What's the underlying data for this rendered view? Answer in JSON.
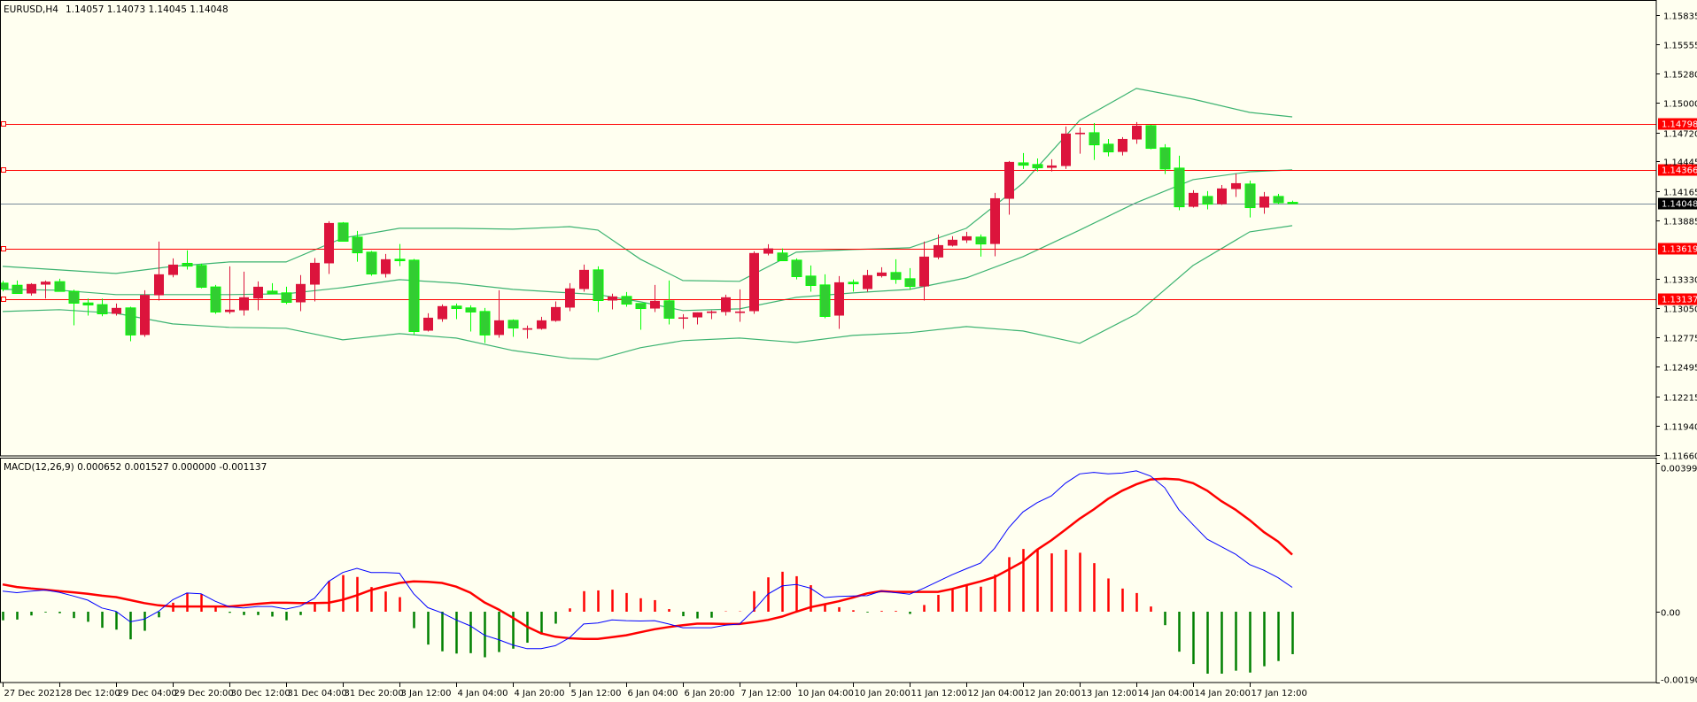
{
  "header": {
    "symbol": "EURUSD,H4",
    "ohlc": "1.14057 1.14073 1.14045 1.14048"
  },
  "macd_header": "MACD(12,26,9) 0.000652 0.001527 0.000000 -0.001137",
  "price_axis": [
    "1.15835",
    "1.15555",
    "1.15280",
    "1.15000",
    "1.14720",
    "1.14445",
    "1.14165",
    "1.13885",
    "1.13330",
    "1.13050",
    "1.12775",
    "1.12495",
    "1.12215",
    "1.11940",
    "1.11660"
  ],
  "macd_axis": [
    "0.003991",
    "0.00",
    "-0.001907"
  ],
  "time_axis": [
    "27 Dec 2021",
    "28 Dec 12:00",
    "29 Dec 04:00",
    "29 Dec 20:00",
    "30 Dec 12:00",
    "31 Dec 04:00",
    "31 Dec 20:00",
    "3 Jan 12:00",
    "4 Jan 04:00",
    "4 Jan 20:00",
    "5 Jan 12:00",
    "6 Jan 04:00",
    "6 Jan 20:00",
    "7 Jan 12:00",
    "10 Jan 04:00",
    "10 Jan 20:00",
    "11 Jan 12:00",
    "12 Jan 04:00",
    "12 Jan 20:00",
    "13 Jan 12:00",
    "14 Jan 04:00",
    "14 Jan 20:00",
    "17 Jan 12:00"
  ],
  "levels": [
    "1.14798",
    "1.14366",
    "1.13619",
    "1.13137"
  ],
  "current_price": "1.14048",
  "colors": {
    "background": "#fffff0",
    "bull": "#dc143c",
    "bear": "#32cd32",
    "bear_border": "#00ff00",
    "bands": "#3cb371",
    "level": "#ff0000",
    "price_line": "#778899",
    "macd_main": "#0000ff",
    "macd_signal": "#ff0000",
    "hist_up": "#ff0000",
    "hist_down": "#008000"
  },
  "chart_data": [
    {
      "type": "candlestick",
      "title": "EURUSD,H4",
      "ylim": [
        1.1166,
        1.15835
      ],
      "ohlc": [
        [
          1.1329,
          1.13312,
          1.13212,
          1.13234
        ],
        [
          1.1327,
          1.13315,
          1.13192,
          1.13192
        ],
        [
          1.13192,
          1.1329,
          1.13172,
          1.13282
        ],
        [
          1.13276,
          1.13315,
          1.13144,
          1.13304
        ],
        [
          1.13304,
          1.13332,
          1.13212,
          1.13212
        ],
        [
          1.13212,
          1.13228,
          1.1289,
          1.131
        ],
        [
          1.13102,
          1.13144,
          1.12982,
          1.13083
        ],
        [
          1.13086,
          1.13144,
          1.12976,
          1.12999
        ],
        [
          1.12999,
          1.13097,
          1.12982,
          1.13055
        ],
        [
          1.13055,
          1.13066,
          1.12738,
          1.12798
        ],
        [
          1.12798,
          1.13223,
          1.1278,
          1.13178
        ],
        [
          1.13175,
          1.13685,
          1.13125,
          1.13374
        ],
        [
          1.13368,
          1.13525,
          1.13346,
          1.13466
        ],
        [
          1.13478,
          1.13601,
          1.13419,
          1.13452
        ],
        [
          1.13458,
          1.13475,
          1.13242,
          1.13251
        ],
        [
          1.13254,
          1.13273,
          1.12999,
          1.13016
        ],
        [
          1.13016,
          1.1345,
          1.12999,
          1.13038
        ],
        [
          1.13032,
          1.13399,
          1.12982,
          1.13156
        ],
        [
          1.13144,
          1.13307,
          1.13032,
          1.13256
        ],
        [
          1.13214,
          1.1329,
          1.1319,
          1.1319
        ],
        [
          1.13198,
          1.13256,
          1.13091,
          1.13108
        ],
        [
          1.13108,
          1.13366,
          1.13024,
          1.13282
        ],
        [
          1.13276,
          1.13528,
          1.13116,
          1.13483
        ],
        [
          1.13478,
          1.13878,
          1.13377,
          1.13861
        ],
        [
          1.13861,
          1.1387,
          1.13688,
          1.13688
        ],
        [
          1.13727,
          1.13786,
          1.13494,
          1.13578
        ],
        [
          1.13584,
          1.13595,
          1.1336,
          1.13377
        ],
        [
          1.13377,
          1.13567,
          1.13343,
          1.13517
        ],
        [
          1.13517,
          1.13662,
          1.13452,
          1.13503
        ],
        [
          1.13508,
          1.1352,
          1.12798,
          1.12831
        ],
        [
          1.12839,
          1.13004,
          1.12831,
          1.12962
        ],
        [
          1.12948,
          1.13088,
          1.12923,
          1.13072
        ],
        [
          1.13072,
          1.13097,
          1.12948,
          1.13049
        ],
        [
          1.13055,
          1.1308,
          1.12831,
          1.13016
        ],
        [
          1.13021,
          1.13055,
          1.12722,
          1.12798
        ],
        [
          1.12798,
          1.13223,
          1.12772,
          1.12937
        ],
        [
          1.12937,
          1.12946,
          1.1278,
          1.12864
        ],
        [
          1.12848,
          1.12887,
          1.12764,
          1.12862
        ],
        [
          1.12856,
          1.12971,
          1.12848,
          1.12937
        ],
        [
          1.12932,
          1.13116,
          1.12923,
          1.13063
        ],
        [
          1.13058,
          1.1329,
          1.13024,
          1.1324
        ],
        [
          1.13234,
          1.13466,
          1.13209,
          1.13416
        ],
        [
          1.13416,
          1.1345,
          1.13016,
          1.13125
        ],
        [
          1.13125,
          1.1319,
          1.13041,
          1.13164
        ],
        [
          1.13164,
          1.13206,
          1.13066,
          1.13091
        ],
        [
          1.13097,
          1.13097,
          1.12848,
          1.13049
        ],
        [
          1.13049,
          1.13273,
          1.13016,
          1.13122
        ],
        [
          1.13122,
          1.13315,
          1.12898,
          1.12957
        ],
        [
          1.12957,
          1.12996,
          1.12856,
          1.12965
        ],
        [
          1.12965,
          1.13013,
          1.12898,
          1.13013
        ],
        [
          1.13007,
          1.1303,
          1.12948,
          1.13021
        ],
        [
          1.13016,
          1.13181,
          1.12982,
          1.13156
        ],
        [
          1.13007,
          1.13231,
          1.12923,
          1.13021
        ],
        [
          1.13024,
          1.13592,
          1.12999,
          1.13576
        ],
        [
          1.1357,
          1.1366,
          1.13553,
          1.1362
        ],
        [
          1.13576,
          1.1362,
          1.13503,
          1.13503
        ],
        [
          1.13508,
          1.13525,
          1.13326,
          1.13352
        ],
        [
          1.13357,
          1.13458,
          1.13209,
          1.13268
        ],
        [
          1.13273,
          1.13374,
          1.12957,
          1.12974
        ],
        [
          1.12982,
          1.13357,
          1.12856,
          1.13298
        ],
        [
          1.13298,
          1.13324,
          1.13209,
          1.13284
        ],
        [
          1.13234,
          1.13416,
          1.13209,
          1.13366
        ],
        [
          1.13357,
          1.13441,
          1.13343,
          1.13391
        ],
        [
          1.13391,
          1.13517,
          1.13284,
          1.13326
        ],
        [
          1.13332,
          1.13433,
          1.13226,
          1.13259
        ],
        [
          1.13259,
          1.13685,
          1.13125,
          1.13542
        ],
        [
          1.13534,
          1.13752,
          1.13517,
          1.13651
        ],
        [
          1.13646,
          1.13735,
          1.13637,
          1.13702
        ],
        [
          1.13696,
          1.13777,
          1.13671,
          1.13735
        ],
        [
          1.13727,
          1.13752,
          1.13542,
          1.13662
        ],
        [
          1.13662,
          1.14147,
          1.13545,
          1.14096
        ],
        [
          1.14091,
          1.14449,
          1.1394,
          1.14441
        ],
        [
          1.14432,
          1.14525,
          1.14374,
          1.1441
        ],
        [
          1.14416,
          1.14474,
          1.14351,
          1.14385
        ],
        [
          1.14385,
          1.14466,
          1.14351,
          1.14407
        ],
        [
          1.14402,
          1.14777,
          1.14374,
          1.1471
        ],
        [
          1.14704,
          1.14768,
          1.14519,
          1.14718
        ],
        [
          1.14718,
          1.1481,
          1.1446,
          1.14603
        ],
        [
          1.14609,
          1.14659,
          1.14494,
          1.14536
        ],
        [
          1.14536,
          1.14676,
          1.14502,
          1.14659
        ],
        [
          1.14654,
          1.14819,
          1.14612,
          1.14785
        ],
        [
          1.14785,
          1.14794,
          1.14561,
          1.1457
        ],
        [
          1.14575,
          1.14609,
          1.14326,
          1.14374
        ],
        [
          1.14382,
          1.145,
          1.13982,
          1.14015
        ],
        [
          1.14015,
          1.14172,
          1.14007,
          1.14147
        ],
        [
          1.14113,
          1.14164,
          1.1399,
          1.1404
        ],
        [
          1.1404,
          1.14222,
          1.14032,
          1.14189
        ],
        [
          1.14183,
          1.14332,
          1.14108,
          1.14239
        ],
        [
          1.14231,
          1.14264,
          1.13914,
          1.14007
        ],
        [
          1.14007,
          1.14155,
          1.13948,
          1.14113
        ],
        [
          1.14113,
          1.14138,
          1.1404,
          1.14054
        ],
        [
          1.14057,
          1.14073,
          1.14045,
          1.14048
        ]
      ],
      "bollinger_bands": {
        "bar_index": [
          0,
          4,
          8,
          12,
          16,
          20,
          24,
          28,
          32,
          36,
          40,
          42,
          45,
          48,
          52,
          56,
          60,
          64,
          68,
          72,
          76,
          80,
          84,
          88,
          91
        ],
        "upper": [
          1.13449,
          1.13416,
          1.13382,
          1.13449,
          1.13491,
          1.13491,
          1.13718,
          1.13811,
          1.13811,
          1.13802,
          1.13827,
          1.13794,
          1.13517,
          1.13315,
          1.13307,
          1.13584,
          1.13609,
          1.13626,
          1.13811,
          1.14239,
          1.14835,
          1.15138,
          1.15037,
          1.14911,
          1.14869
        ],
        "middle": [
          1.13231,
          1.13223,
          1.13181,
          1.13181,
          1.13181,
          1.13189,
          1.13248,
          1.13323,
          1.1329,
          1.13231,
          1.13197,
          1.13181,
          1.13113,
          1.1303,
          1.13046,
          1.13155,
          1.13197,
          1.13231,
          1.1334,
          1.13542,
          1.13794,
          1.14054,
          1.14273,
          1.14348,
          1.14365
        ],
        "lower": [
          1.13021,
          1.13038,
          1.13004,
          1.12903,
          1.1287,
          1.12862,
          1.12752,
          1.12811,
          1.12769,
          1.12651,
          1.12576,
          1.12567,
          1.12677,
          1.12744,
          1.12769,
          1.12727,
          1.12794,
          1.1282,
          1.12878,
          1.12836,
          1.12719,
          1.12996,
          1.13458,
          1.13777,
          1.13836
        ]
      }
    },
    {
      "type": "line",
      "title": "MACD(12,26,9)",
      "ylim": [
        -0.001907,
        0.003991
      ],
      "series": [
        {
          "name": "MACD",
          "values": [
            0.00055,
            0.00051,
            0.00055,
            0.00058,
            0.00052,
            0.00042,
            0.00031,
            0.0001,
            1e-05,
            -0.00027,
            -0.0002,
            1e-05,
            0.00032,
            0.0005,
            0.00048,
            0.00028,
            0.00013,
            0.0001,
            0.00014,
            0.00014,
            7e-05,
            0.00015,
            0.00036,
            0.00081,
            0.00105,
            0.00116,
            0.00105,
            0.00105,
            0.00103,
            0.00048,
            0.00011,
            -3e-05,
            -0.00022,
            -0.00038,
            -0.00063,
            -0.00075,
            -0.00089,
            -0.00099,
            -0.00099,
            -0.00091,
            -0.0007,
            -0.00033,
            -0.0003,
            -0.00022,
            -0.00024,
            -0.00025,
            -0.00024,
            -0.00033,
            -0.00043,
            -0.00043,
            -0.00043,
            -0.00036,
            -0.00033,
            4e-05,
            0.00047,
            0.00069,
            0.00073,
            0.00063,
            0.00038,
            0.00041,
            0.00042,
            0.00043,
            0.00055,
            0.00051,
            0.00047,
            0.00063,
            0.00081,
            0.00099,
            0.00115,
            0.0013,
            0.0017,
            0.00225,
            0.00267,
            0.00292,
            0.0031,
            0.00344,
            0.00369,
            0.00373,
            0.00369,
            0.00371,
            0.00377,
            0.00363,
            0.00332,
            0.00273,
            0.00233,
            0.00194,
            0.00174,
            0.00154,
            0.00126,
            0.00111,
            0.00091,
            0.000652
          ]
        },
        {
          "name": "Signal",
          "values": [
            0.00073,
            0.00066,
            0.00062,
            0.00059,
            0.00055,
            0.00052,
            0.00048,
            0.00043,
            0.00039,
            0.00031,
            0.00023,
            0.00017,
            0.00014,
            0.00014,
            0.00014,
            0.00014,
            0.00014,
            0.00017,
            0.00021,
            0.00024,
            0.00024,
            0.00023,
            0.00023,
            0.00024,
            0.00032,
            0.00044,
            0.00058,
            0.00068,
            0.00077,
            0.00081,
            0.0008,
            0.00077,
            0.00067,
            0.00051,
            0.00025,
            6e-05,
            -0.00016,
            -0.0004,
            -0.00058,
            -0.00067,
            -0.00071,
            -0.00073,
            -0.00073,
            -0.00068,
            -0.00063,
            -0.00055,
            -0.00047,
            -0.00041,
            -0.00036,
            -0.00032,
            -0.00032,
            -0.00033,
            -0.00033,
            -0.00028,
            -0.00022,
            -0.00013,
            0.0,
            0.00012,
            0.0002,
            0.00028,
            0.00038,
            0.00049,
            0.00055,
            0.00053,
            0.00053,
            0.00053,
            0.00053,
            0.00061,
            0.00071,
            0.00081,
            0.00093,
            0.00113,
            0.00134,
            0.00166,
            0.00191,
            0.0022,
            0.00249,
            0.00274,
            0.00302,
            0.00324,
            0.00341,
            0.00354,
            0.00356,
            0.00354,
            0.00344,
            0.00324,
            0.00296,
            0.00273,
            0.00245,
            0.00213,
            0.00188,
            0.001527
          ]
        },
        {
          "name": "Histogram",
          "values": [
            -0.00023,
            -0.00021,
            -0.0001,
            -2e-05,
            -4e-05,
            -0.00017,
            -0.00027,
            -0.00043,
            -0.00048,
            -0.00074,
            -0.00051,
            -0.00015,
            0.00024,
            0.00051,
            0.00047,
            0.00015,
            -3e-05,
            -9e-05,
            -9e-05,
            -0.00013,
            -0.00023,
            -9e-05,
            0.00022,
            0.00082,
            0.00098,
            0.00093,
            0.00066,
            0.00054,
            0.00039,
            -0.00044,
            -0.00088,
            -0.00106,
            -0.00112,
            -0.00111,
            -0.00122,
            -0.00108,
            -0.00099,
            -0.00083,
            -0.00061,
            -0.00032,
            9e-05,
            0.00055,
            0.00057,
            0.00059,
            0.0005,
            0.00036,
            0.00031,
            7e-05,
            -0.00012,
            -0.00018,
            -0.00016,
            1e-05,
            1e-05,
            0.00055,
            0.00092,
            0.00107,
            0.00095,
            0.00071,
            0.0002,
            0.00012,
            4e-05,
            -2e-05,
            2e-05,
            2e-05,
            -6e-05,
            0.00018,
            0.00045,
            0.00061,
            0.00071,
            0.00067,
            0.00099,
            0.00146,
            0.00168,
            0.00167,
            0.00156,
            0.00166,
            0.00158,
            0.0013,
            0.00089,
            0.00062,
            0.0005,
            0.00014,
            -0.00036,
            -0.00107,
            -0.0014,
            -0.00166,
            -0.00166,
            -0.00158,
            -0.00163,
            -0.00146,
            -0.00132,
            -0.001137
          ]
        }
      ]
    }
  ]
}
